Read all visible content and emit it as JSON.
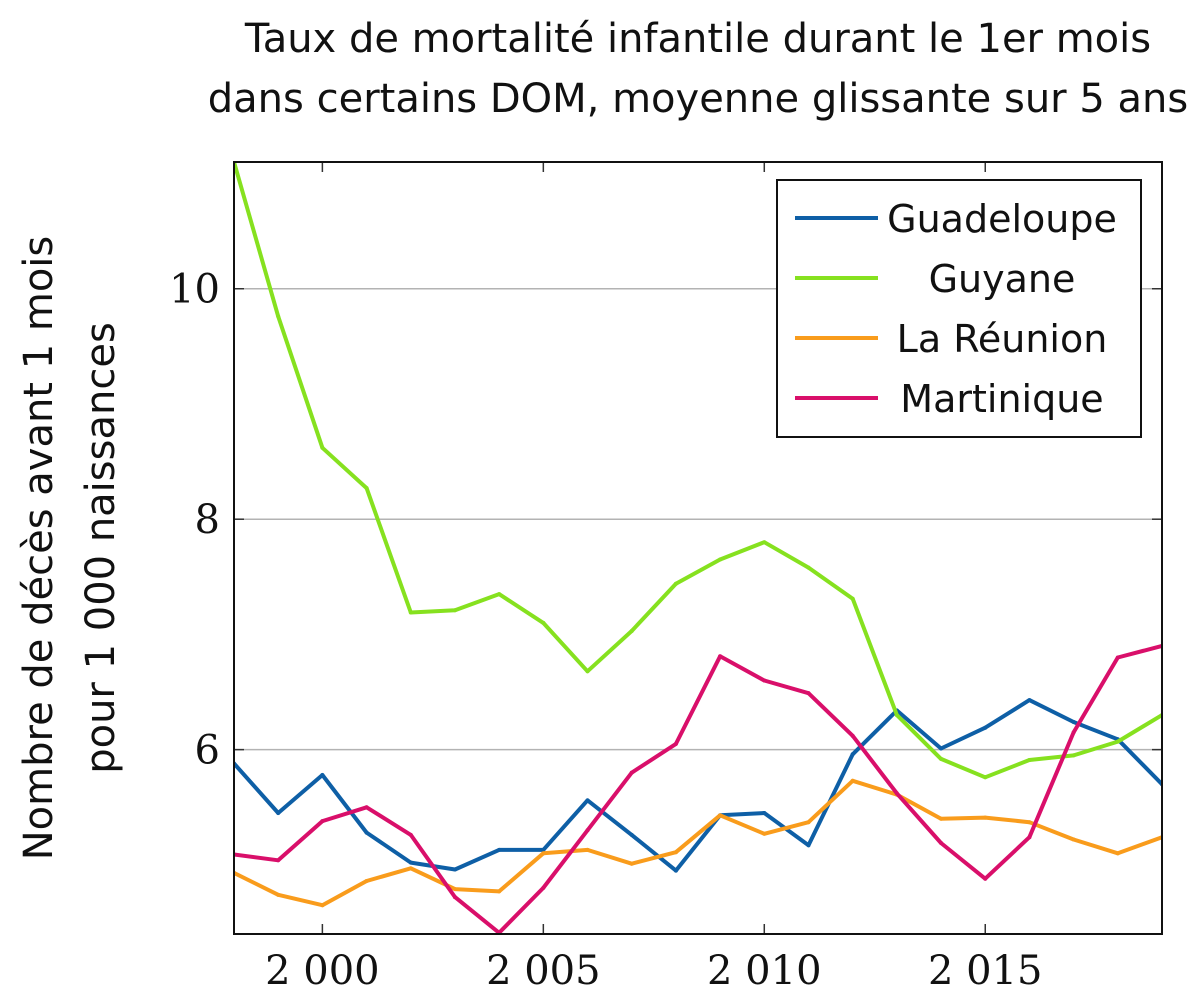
{
  "chart_data": {
    "type": "line",
    "title": [
      "Taux de mortalité infantile durant le 1er mois",
      "dans certains DOM, moyenne glissante sur 5 ans"
    ],
    "xlabel": "",
    "ylabel": [
      "Nombre de décès avant 1 mois",
      "pour 1 000 naissances"
    ],
    "xlim": [
      1998,
      2019
    ],
    "ylim": [
      4.4,
      11.1
    ],
    "x_ticks": [
      2000,
      2005,
      2010,
      2015
    ],
    "x_tick_labels": [
      "2 000",
      "2 005",
      "2 010",
      "2 015"
    ],
    "y_ticks": [
      6,
      8,
      10
    ],
    "y_tick_labels": [
      "6",
      "8",
      "10"
    ],
    "grid": true,
    "legend_position": "top-right",
    "x": [
      1998,
      1999,
      2000,
      2001,
      2002,
      2003,
      2004,
      2005,
      2006,
      2007,
      2008,
      2009,
      2010,
      2011,
      2012,
      2013,
      2014,
      2015,
      2016,
      2017,
      2018,
      2019
    ],
    "series": [
      {
        "name": "Guadeloupe",
        "color": "#0e5fa6",
        "values": [
          5.88,
          5.45,
          5.78,
          5.28,
          5.02,
          4.96,
          5.13,
          5.13,
          5.56,
          5.26,
          4.95,
          5.43,
          5.45,
          5.17,
          5.96,
          6.34,
          6.01,
          6.19,
          6.43,
          6.24,
          6.09,
          5.7
        ]
      },
      {
        "name": "Guyane",
        "color": "#86e11f",
        "values": [
          11.1,
          9.76,
          8.62,
          8.27,
          7.19,
          7.21,
          7.35,
          7.1,
          6.68,
          7.03,
          7.44,
          7.65,
          7.8,
          7.58,
          7.31,
          6.3,
          5.92,
          5.76,
          5.91,
          5.95,
          6.07,
          6.3
        ]
      },
      {
        "name": "La Réunion",
        "color": "#f99c1c",
        "values": [
          4.93,
          4.74,
          4.65,
          4.86,
          4.97,
          4.79,
          4.77,
          5.1,
          5.13,
          5.01,
          5.11,
          5.43,
          5.27,
          5.37,
          5.73,
          5.61,
          5.4,
          5.41,
          5.37,
          5.22,
          5.1,
          5.24
        ]
      },
      {
        "name": "Martinique",
        "color": "#d90f6a",
        "values": [
          5.09,
          5.04,
          5.38,
          5.5,
          5.26,
          4.72,
          4.41,
          4.8,
          5.3,
          5.8,
          6.05,
          6.81,
          6.6,
          6.49,
          6.12,
          5.62,
          5.19,
          4.88,
          5.24,
          6.15,
          6.8,
          6.9
        ]
      }
    ]
  }
}
